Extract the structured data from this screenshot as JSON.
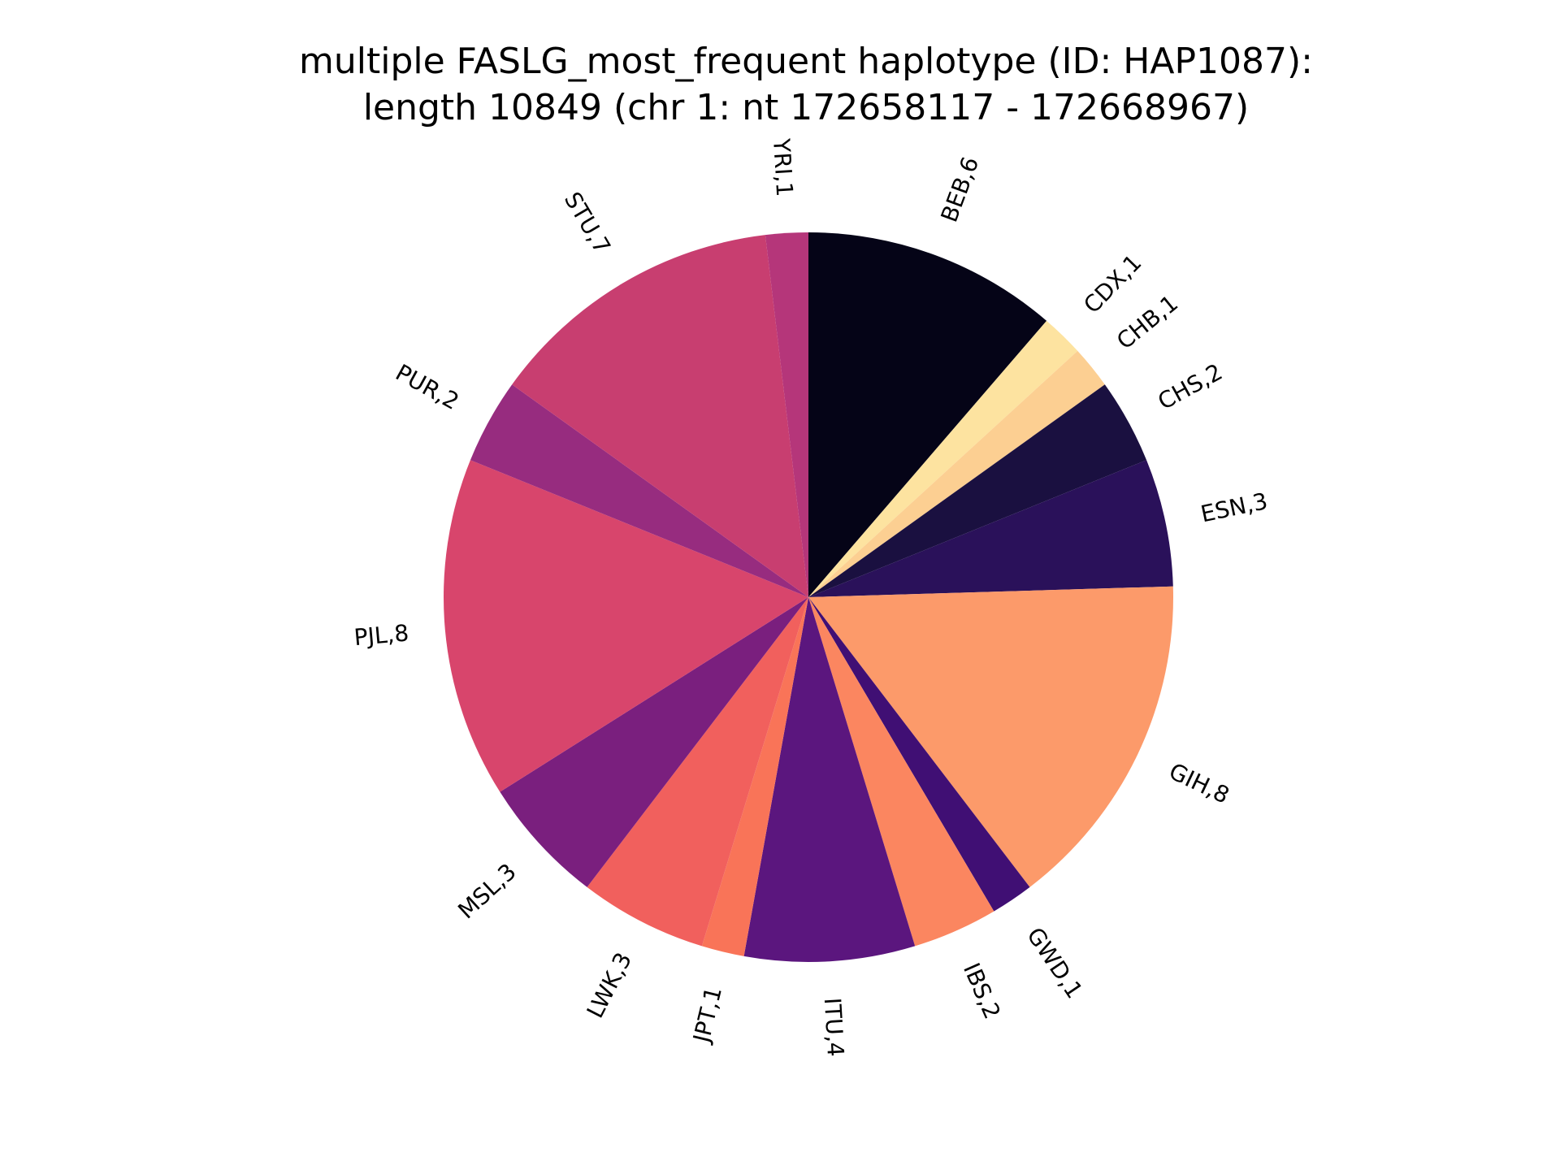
{
  "chart_data": {
    "type": "pie",
    "title": "multiple FASLG_most_frequent haplotype (ID: HAP1087):",
    "subtitle": "length 10849 (chr 1: nt 172658117 - 172668967)",
    "direction": "clockwise",
    "start": "top",
    "slices": [
      {
        "label": "BEB,6",
        "value": 6,
        "color": "#050417"
      },
      {
        "label": "CDX,1",
        "value": 1,
        "color": "#fde3a0"
      },
      {
        "label": "CHB,1",
        "value": 1,
        "color": "#fccf92"
      },
      {
        "label": "CHS,2",
        "value": 2,
        "color": "#1a1040"
      },
      {
        "label": "ESN,3",
        "value": 3,
        "color": "#2a115a"
      },
      {
        "label": "GIH,8",
        "value": 8,
        "color": "#fc9a6a"
      },
      {
        "label": "GWD,1",
        "value": 1,
        "color": "#400f74"
      },
      {
        "label": "IBS,2",
        "value": 2,
        "color": "#fb8660"
      },
      {
        "label": "ITU,4",
        "value": 4,
        "color": "#5b167e"
      },
      {
        "label": "JPT,1",
        "value": 1,
        "color": "#f97458"
      },
      {
        "label": "LWK,3",
        "value": 3,
        "color": "#f1605d"
      },
      {
        "label": "MSL,3",
        "value": 3,
        "color": "#7a1f7e"
      },
      {
        "label": "PJL,8",
        "value": 8,
        "color": "#d8456c"
      },
      {
        "label": "PUR,2",
        "value": 2,
        "color": "#972c7f"
      },
      {
        "label": "STU,7",
        "value": 7,
        "color": "#c83e70"
      },
      {
        "label": "YRI,1",
        "value": 1,
        "color": "#b5367a"
      }
    ]
  }
}
